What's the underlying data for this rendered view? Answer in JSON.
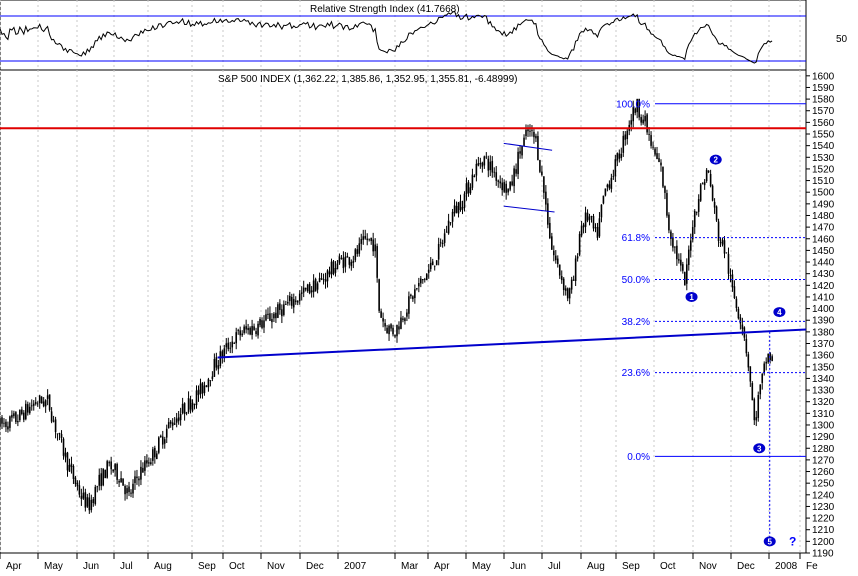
{
  "rsi": {
    "title": "Relative Strength Index (41.7668)",
    "upper": 70,
    "lower": 30,
    "tick_label": "50",
    "color": "#000000",
    "band_color": "#0000ff"
  },
  "main": {
    "title": "S&P 500 INDEX (1,362.22, 1,385.86, 1,352.95, 1,355.81, -6.48999)"
  },
  "months": [
    "Apr",
    "May",
    "Jun",
    "Jul",
    "Aug",
    "Sep",
    "Oct",
    "Nov",
    "Dec",
    "2007",
    "Mar",
    "Apr",
    "May",
    "Jun",
    "Jul",
    "Aug",
    "Sep",
    "Oct",
    "Nov",
    "Dec",
    "2008",
    "Fe"
  ],
  "fib_levels": [
    {
      "label": "100.0%",
      "value": 1576
    },
    {
      "label": "61.8%",
      "value": 1461
    },
    {
      "label": "50.0%",
      "value": 1425
    },
    {
      "label": "38.2%",
      "value": 1389
    },
    {
      "label": "23.6%",
      "value": 1345
    },
    {
      "label": "0.0%",
      "value": 1273
    }
  ],
  "waves": [
    {
      "label": "1",
      "t": 0.808,
      "v": 1410
    },
    {
      "label": "2",
      "t": 0.838,
      "v": 1528
    },
    {
      "label": "3",
      "t": 0.892,
      "v": 1280
    },
    {
      "label": "4",
      "t": 0.917,
      "v": 1397
    },
    {
      "label": "5",
      "t": 0.905,
      "v": 1200
    }
  ],
  "question_mark": "?",
  "colors": {
    "candle": "#000000",
    "resistance": "#e00000",
    "neckline": "#0000cc",
    "fib": "#0000ff",
    "grid": "#c8c8c8"
  },
  "chart_data": [
    {
      "type": "line",
      "title": "Relative Strength Index (41.7668)",
      "current_value": 41.7668,
      "bands": [
        30,
        70
      ],
      "ytick_labels": [
        "50"
      ]
    },
    {
      "type": "candlestick",
      "title": "S&P 500 INDEX (1,362.22, 1,385.86, 1,352.95, 1,355.81, -6.48999)",
      "last_bar": {
        "open": 1362.22,
        "high": 1385.86,
        "low": 1352.95,
        "close": 1355.81,
        "change": -6.48999
      },
      "ylim": [
        1190,
        1605
      ],
      "ytick_labels": [
        1190,
        1200,
        1210,
        1220,
        1230,
        1240,
        1250,
        1260,
        1270,
        1280,
        1290,
        1300,
        1310,
        1320,
        1330,
        1340,
        1350,
        1360,
        1370,
        1380,
        1390,
        1400,
        1410,
        1420,
        1430,
        1440,
        1450,
        1460,
        1470,
        1480,
        1490,
        1500,
        1510,
        1520,
        1530,
        1540,
        1550,
        1560,
        1570,
        1580,
        1590,
        1600
      ],
      "xtick_labels": [
        "Apr",
        "May",
        "Jun",
        "Jul",
        "Aug",
        "Sep",
        "Oct",
        "Nov",
        "Dec",
        "2007",
        "Mar",
        "Apr",
        "May",
        "Jun",
        "Jul",
        "Aug",
        "Sep",
        "Oct",
        "Nov",
        "Dec",
        "2008",
        "Fe"
      ],
      "price_path": [
        [
          0.0,
          1300
        ],
        [
          0.02,
          1305
        ],
        [
          0.045,
          1320
        ],
        [
          0.06,
          1320
        ],
        [
          0.07,
          1295
        ],
        [
          0.085,
          1265
        ],
        [
          0.1,
          1240
        ],
        [
          0.11,
          1230
        ],
        [
          0.122,
          1250
        ],
        [
          0.135,
          1265
        ],
        [
          0.15,
          1255
        ],
        [
          0.16,
          1238
        ],
        [
          0.172,
          1258
        ],
        [
          0.19,
          1275
        ],
        [
          0.21,
          1300
        ],
        [
          0.23,
          1315
        ],
        [
          0.25,
          1330
        ],
        [
          0.265,
          1350
        ],
        [
          0.285,
          1370
        ],
        [
          0.3,
          1380
        ],
        [
          0.32,
          1385
        ],
        [
          0.34,
          1395
        ],
        [
          0.36,
          1405
        ],
        [
          0.38,
          1415
        ],
        [
          0.4,
          1425
        ],
        [
          0.42,
          1440
        ],
        [
          0.44,
          1445
        ],
        [
          0.455,
          1460
        ],
        [
          0.465,
          1455
        ],
        [
          0.47,
          1400
        ],
        [
          0.478,
          1385
        ],
        [
          0.49,
          1380
        ],
        [
          0.5,
          1395
        ],
        [
          0.515,
          1415
        ],
        [
          0.53,
          1430
        ],
        [
          0.545,
          1450
        ],
        [
          0.56,
          1480
        ],
        [
          0.575,
          1495
        ],
        [
          0.59,
          1520
        ],
        [
          0.6,
          1530
        ],
        [
          0.61,
          1520
        ],
        [
          0.62,
          1510
        ],
        [
          0.632,
          1500
        ],
        [
          0.645,
          1535
        ],
        [
          0.655,
          1552
        ],
        [
          0.665,
          1545
        ],
        [
          0.675,
          1500
        ],
        [
          0.685,
          1450
        ],
        [
          0.695,
          1430
        ],
        [
          0.705,
          1410
        ],
        [
          0.712,
          1425
        ],
        [
          0.72,
          1470
        ],
        [
          0.73,
          1480
        ],
        [
          0.74,
          1460
        ],
        [
          0.75,
          1500
        ],
        [
          0.765,
          1525
        ],
        [
          0.78,
          1560
        ],
        [
          0.79,
          1575
        ],
        [
          0.8,
          1560
        ],
        [
          0.81,
          1535
        ],
        [
          0.82,
          1520
        ],
        [
          0.83,
          1470
        ],
        [
          0.84,
          1445
        ],
        [
          0.85,
          1420
        ],
        [
          0.858,
          1470
        ],
        [
          0.868,
          1500
        ],
        [
          0.878,
          1520
        ],
        [
          0.885,
          1490
        ],
        [
          0.892,
          1460
        ],
        [
          0.9,
          1450
        ],
        [
          0.907,
          1420
        ],
        [
          0.915,
          1400
        ],
        [
          0.922,
          1385
        ],
        [
          0.93,
          1345
        ],
        [
          0.936,
          1300
        ],
        [
          0.94,
          1320
        ],
        [
          0.946,
          1340
        ],
        [
          0.952,
          1360
        ],
        [
          0.958,
          1356
        ]
      ],
      "annotations": {
        "resistance": 1555,
        "neckline": [
          [
            0.27,
            1358
          ],
          [
            1.0,
            1382
          ]
        ],
        "fib_levels": {
          "100.0%": 1576,
          "61.8%": 1461,
          "50.0%": 1425,
          "38.2%": 1389,
          "23.6%": 1345,
          "0.0%": 1273
        }
      }
    }
  ]
}
